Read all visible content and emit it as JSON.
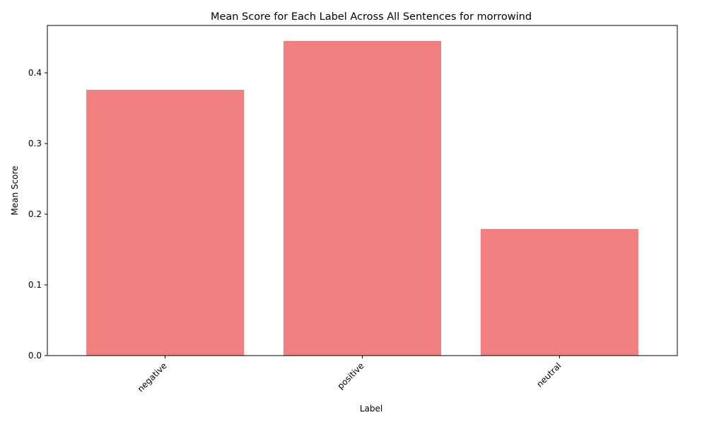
{
  "chart_data": {
    "type": "bar",
    "title": "Mean Score for Each Label Across All Sentences for morrowind",
    "xlabel": "Label",
    "ylabel": "Mean Score",
    "categories": [
      "negative",
      "positive",
      "neutral"
    ],
    "values": [
      0.376,
      0.445,
      0.179
    ],
    "ylim": [
      0,
      0.467
    ],
    "yticks": [
      0.0,
      0.1,
      0.2,
      0.3,
      0.4
    ],
    "ytick_labels": [
      "0.0",
      "0.1",
      "0.2",
      "0.3",
      "0.4"
    ],
    "bar_color": "#f08080",
    "grid": false,
    "legend": "none",
    "xtick_rotation_deg": 45
  }
}
